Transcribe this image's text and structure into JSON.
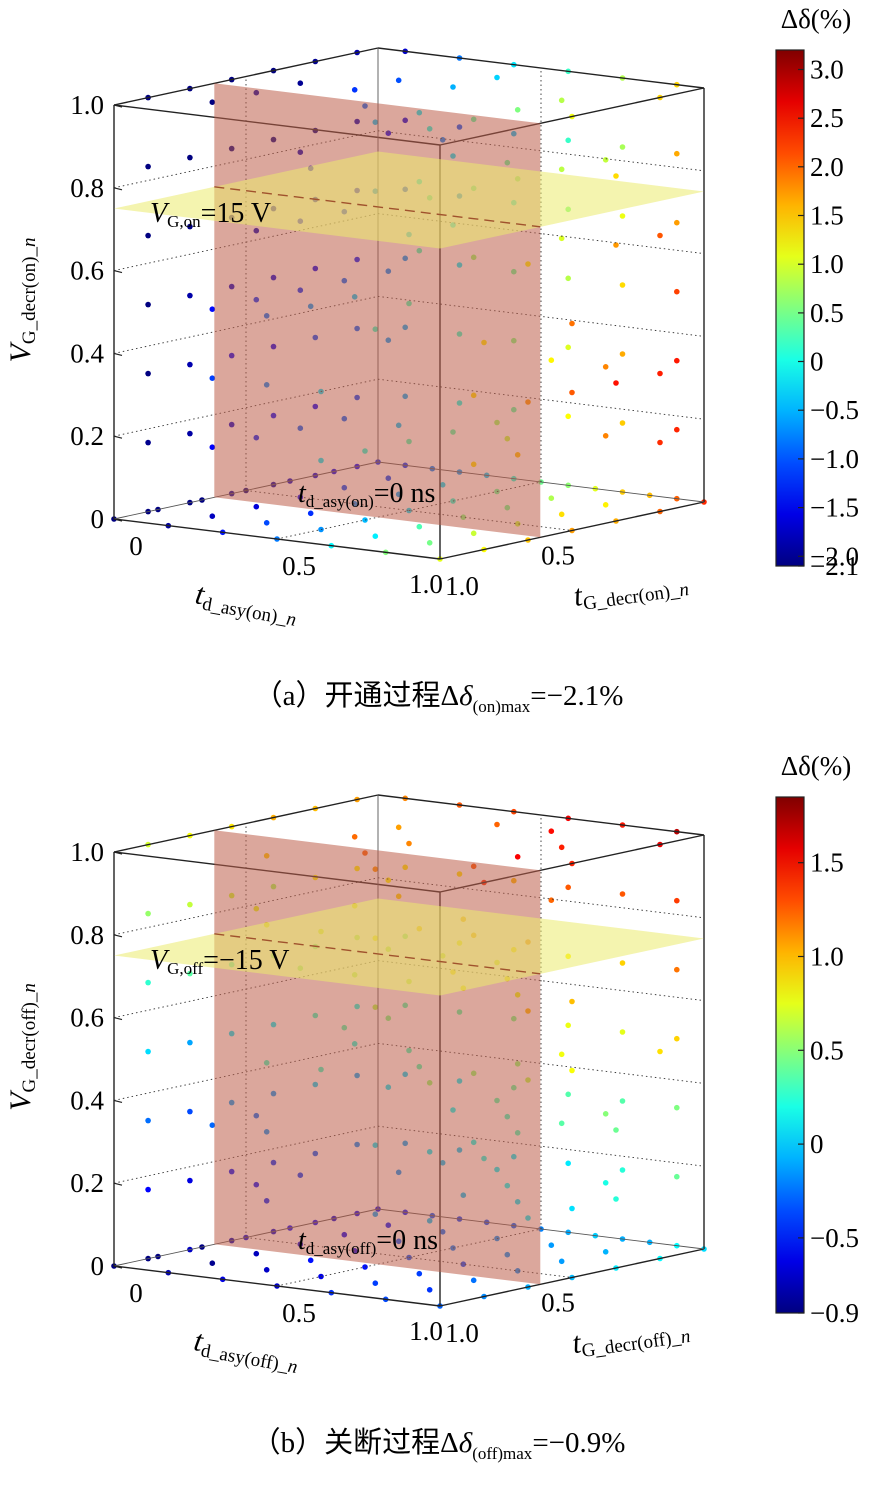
{
  "chart_data": [
    {
      "type": "scatter",
      "panel": "a",
      "caption": {
        "prefix": "（a）开通过程Δ",
        "delta": "δ",
        "sub": "(on)max",
        "suffix": "=−2.1%"
      },
      "axes": {
        "x": {
          "label": "t",
          "label_sub": "d_asy(on)_",
          "label_italic_n": "n",
          "ticks": [
            "0.5",
            "1.0"
          ],
          "range": [
            0,
            1
          ]
        },
        "y": {
          "label": "t",
          "label_sub": "G_decr(on)_",
          "label_italic_n": "n",
          "ticks": [
            "0",
            "0.5",
            "1.0"
          ],
          "range": [
            0,
            1
          ]
        },
        "z": {
          "label": "V",
          "label_sub": "G_decr(on)_",
          "label_italic_n": "n",
          "ticks": [
            "0",
            "0.2",
            "0.4",
            "0.6",
            "0.8",
            "1.0"
          ],
          "range": [
            0,
            1
          ]
        }
      },
      "annotations": {
        "plane_label": {
          "main": "V",
          "sub": "G,on",
          "rest": "=15 V"
        },
        "floor_label": {
          "main": "t",
          "sub": "d_asy(on)",
          "rest": "=0 ns"
        }
      },
      "colorbar": {
        "title": "Δδ(%)",
        "range": [
          -2.1,
          3.2
        ],
        "ticks": [
          "3.0",
          "2.5",
          "2.0",
          "1.5",
          "1.0",
          "0.5",
          "0",
          "−0.5",
          "−1.0",
          "−1.5",
          "−2.0",
          "−2.1"
        ]
      },
      "delta_max": -2.1,
      "grid": true
    },
    {
      "type": "scatter",
      "panel": "b",
      "caption": {
        "prefix": "（b）关断过程Δ",
        "delta": "δ",
        "sub": "(off)max",
        "suffix": "=−0.9%"
      },
      "axes": {
        "x": {
          "label": "t",
          "label_sub": "d_asy(off)_",
          "label_italic_n": "n",
          "ticks": [
            "0.5",
            "1.0"
          ],
          "range": [
            0,
            1
          ]
        },
        "y": {
          "label": "t",
          "label_sub": "G_decr(off)_",
          "label_italic_n": "n",
          "ticks": [
            "0",
            "0.5",
            "1.0"
          ],
          "range": [
            0,
            1
          ]
        },
        "z": {
          "label": "V",
          "label_sub": "G_decr(off)_",
          "label_italic_n": "n",
          "ticks": [
            "0",
            "0.2",
            "0.4",
            "0.6",
            "0.8",
            "1.0"
          ],
          "range": [
            0,
            1
          ]
        }
      },
      "annotations": {
        "plane_label": {
          "main": "V",
          "sub": "G,off",
          "rest": "=−15 V"
        },
        "floor_label": {
          "main": "t",
          "sub": "d_asy(off)",
          "rest": "=0 ns"
        }
      },
      "colorbar": {
        "title": "Δδ(%)",
        "range": [
          -0.9,
          1.85
        ],
        "ticks": [
          "1.5",
          "1.0",
          "0.5",
          "0",
          "−0.5",
          "−0.9"
        ]
      },
      "delta_max": -0.9,
      "grid": true
    }
  ]
}
